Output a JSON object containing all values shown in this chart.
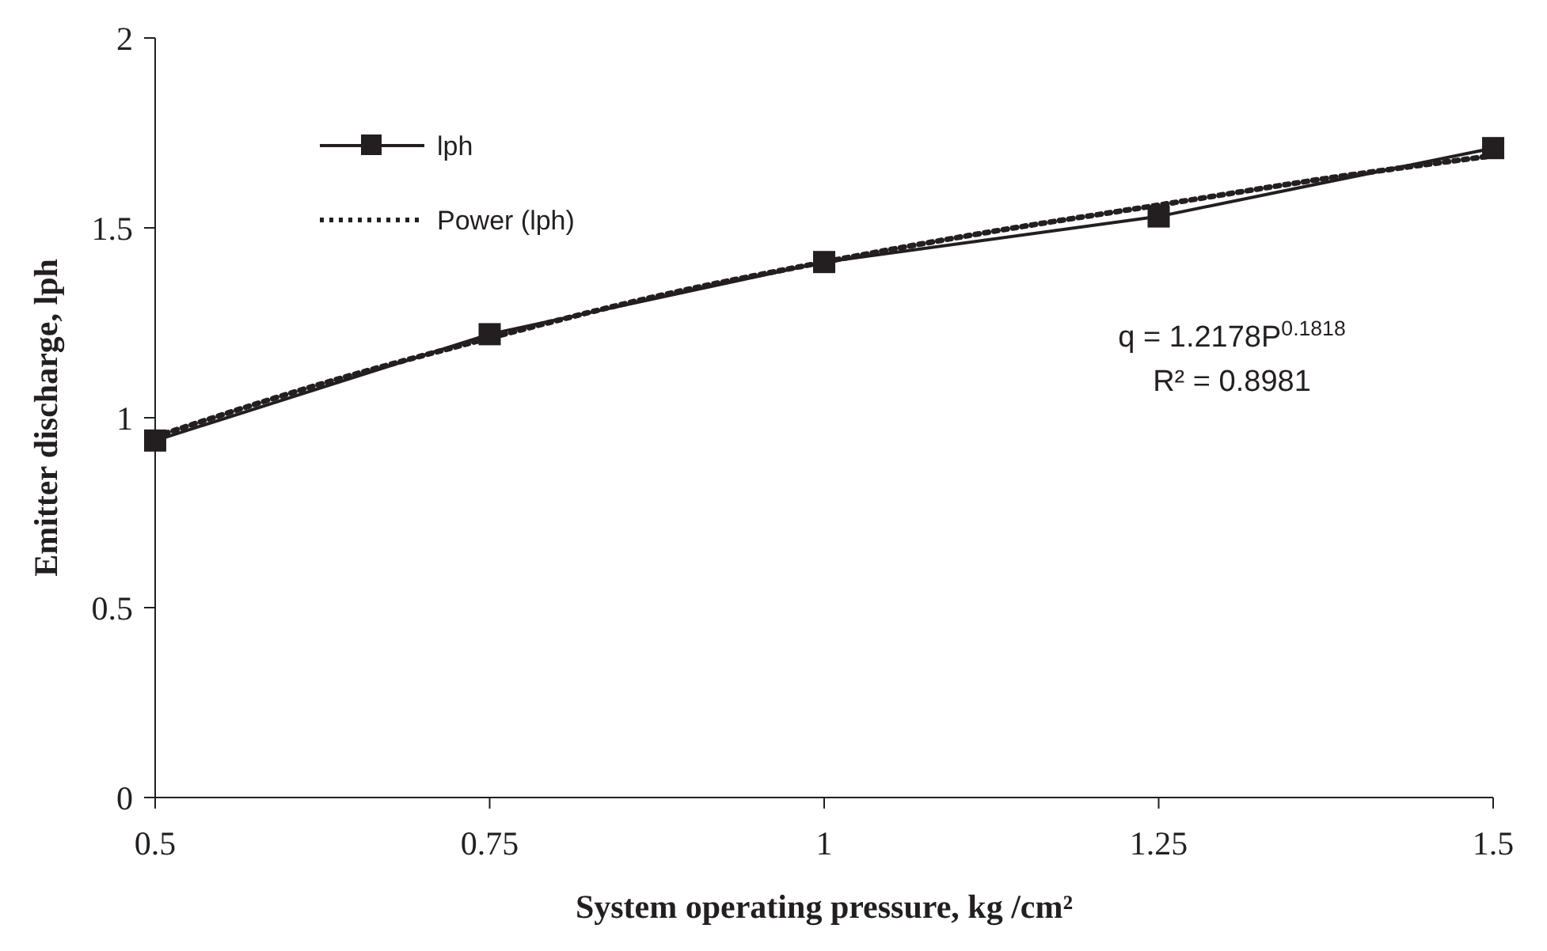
{
  "chart_data": {
    "type": "line",
    "xlabel": "System operating pressure, kg /cm²",
    "ylabel": "Emitter discharge, lph",
    "x": [
      0.5,
      0.75,
      1,
      1.25,
      1.5
    ],
    "series": [
      {
        "name": "lph",
        "color": "#231f20",
        "values": [
          0.94,
          1.22,
          1.41,
          1.53,
          1.71
        ],
        "marker": "square",
        "line_style": "solid"
      },
      {
        "name": "Power (lph)",
        "color": "#231f20",
        "x": [
          0.5,
          0.625,
          0.75,
          0.875,
          1,
          1.125,
          1.25,
          1.375,
          1.5
        ],
        "values": [
          0.95,
          1.09,
          1.21,
          1.32,
          1.41,
          1.49,
          1.56,
          1.63,
          1.69
        ],
        "marker": "none",
        "line_style": "dotted"
      }
    ],
    "annotations": [
      "q = 1.2178P$^{0.1818}$",
      "R² = 0.8981"
    ],
    "xlim": [
      0.5,
      1.5
    ],
    "xticks": [
      0.5,
      0.75,
      1,
      1.25,
      1.5
    ],
    "ylim": [
      0,
      2
    ],
    "yticks": [
      0,
      0.5,
      1,
      1.5,
      2
    ],
    "grid": false,
    "legend": "top left"
  }
}
